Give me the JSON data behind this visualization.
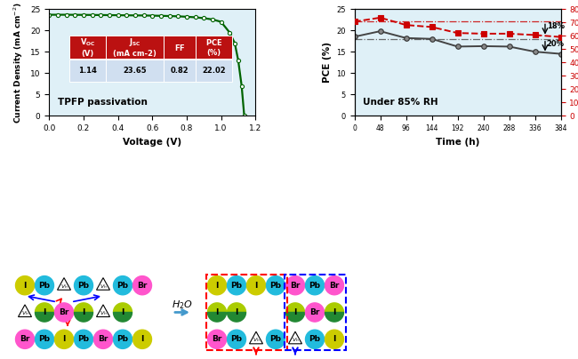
{
  "jv_voltage": [
    0.0,
    0.05,
    0.1,
    0.15,
    0.2,
    0.25,
    0.3,
    0.35,
    0.4,
    0.45,
    0.5,
    0.55,
    0.6,
    0.65,
    0.7,
    0.75,
    0.8,
    0.85,
    0.9,
    0.95,
    1.0,
    1.05,
    1.08,
    1.1,
    1.12,
    1.135
  ],
  "jv_current": [
    23.65,
    23.65,
    23.65,
    23.63,
    23.62,
    23.6,
    23.58,
    23.56,
    23.54,
    23.52,
    23.5,
    23.48,
    23.44,
    23.4,
    23.35,
    23.28,
    23.18,
    23.05,
    22.85,
    22.55,
    22.0,
    19.5,
    17.0,
    13.0,
    7.0,
    0.0
  ],
  "pce_time": [
    0,
    48,
    96,
    144,
    192,
    240,
    288,
    336,
    384
  ],
  "pce_data": [
    18.5,
    19.8,
    18.2,
    18.0,
    16.2,
    16.3,
    16.2,
    15.0,
    14.5
  ],
  "ff_data": [
    70.5,
    73.5,
    68.0,
    66.5,
    62.0,
    61.5,
    61.5,
    60.5,
    59.0
  ],
  "pce_ref": 18.0,
  "ff_ref": 70.5,
  "table_headers": [
    "V_OC\n(V)",
    "J_SC\n(mA cm-2)",
    "FF",
    "PCE\n(%)"
  ],
  "table_values": [
    "1.14",
    "23.65",
    "0.82",
    "22.02"
  ],
  "label_left": "TPFP passivation",
  "label_right": "Under 85% RH",
  "bg_color": "#dff0f7",
  "jv_color": "#006400",
  "pce_color": "#444444",
  "ff_color": "#cc0000",
  "table_header_bg": "#bb1111",
  "table_value_bg": "#d0dff0",
  "c_I": "#cccc00",
  "c_Pb": "#22bbdd",
  "c_Br": "#ff55cc",
  "c_mix_green": "#228833",
  "c_mix_yellow": "#aacc00",
  "c_black": "#000000"
}
